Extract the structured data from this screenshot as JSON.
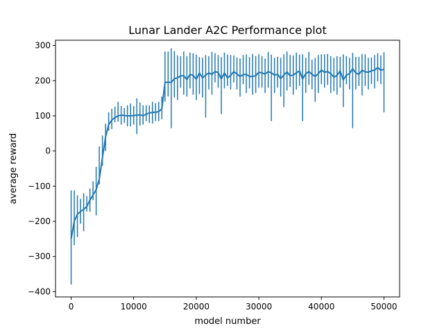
{
  "chart_data": {
    "type": "line",
    "title": "Lunar Lander A2C Performance plot",
    "xlabel": "model number",
    "ylabel": "average reward",
    "xlim": [
      -2500,
      52500
    ],
    "ylim": [
      -415,
      315
    ],
    "x_ticks": [
      0,
      10000,
      20000,
      30000,
      40000,
      50000
    ],
    "x_tick_labels": [
      "0",
      "10000",
      "20000",
      "30000",
      "40000",
      "50000"
    ],
    "y_ticks": [
      -400,
      -300,
      -200,
      -100,
      0,
      100,
      200,
      300
    ],
    "y_tick_labels": [
      "−400",
      "−300",
      "−200",
      "−100",
      "0",
      "100",
      "200",
      "300"
    ],
    "grid": false,
    "legend": "none",
    "series": [
      {
        "color": "#1f77b4",
        "error_bars": true,
        "x": [
          0,
          500,
          1000,
          1500,
          2000,
          2500,
          3000,
          3500,
          4000,
          4500,
          5000,
          5500,
          6000,
          6500,
          7000,
          7500,
          8000,
          8500,
          9000,
          9500,
          10000,
          10500,
          11000,
          11500,
          12000,
          12500,
          13000,
          13500,
          14000,
          14500,
          15000,
          15500,
          16000,
          16500,
          17000,
          17500,
          18000,
          18500,
          19000,
          19500,
          20000,
          20500,
          21000,
          21500,
          22000,
          22500,
          23000,
          23500,
          24000,
          24500,
          25000,
          25500,
          26000,
          26500,
          27000,
          27500,
          28000,
          28500,
          29000,
          29500,
          30000,
          30500,
          31000,
          31500,
          32000,
          32500,
          33000,
          33500,
          34000,
          34500,
          35000,
          35500,
          36000,
          36500,
          37000,
          37500,
          38000,
          38500,
          39000,
          39500,
          40000,
          40500,
          41000,
          41500,
          42000,
          42500,
          43000,
          43500,
          44000,
          44500,
          45000,
          45500,
          46000,
          46500,
          47000,
          47500,
          48000,
          48500,
          49000,
          49500,
          50000
        ],
        "y": [
          -250,
          -200,
          -180,
          -172,
          -166,
          -158,
          -140,
          -125,
          -110,
          -80,
          -20,
          40,
          75,
          88,
          95,
          100,
          102,
          101,
          100,
          100,
          101,
          102,
          103,
          100,
          105,
          108,
          110,
          110,
          112,
          120,
          195,
          196,
          195,
          206,
          208,
          214,
          214,
          203,
          218,
          215,
          204,
          222,
          208,
          216,
          222,
          218,
          226,
          223,
          205,
          222,
          208,
          215,
          226,
          219,
          212,
          217,
          218,
          212,
          212,
          214,
          224,
          222,
          219,
          226,
          222,
          216,
          218,
          206,
          216,
          225,
          214,
          216,
          222,
          228,
          205,
          220,
          226,
          218,
          212,
          220,
          230,
          224,
          226,
          220,
          210,
          215,
          228,
          202,
          216,
          220,
          234,
          222,
          218,
          230,
          225,
          224,
          228,
          230,
          237,
          230,
          232
        ],
        "lower": [
          -380,
          -268,
          -245,
          -207,
          -228,
          -172,
          -173,
          -140,
          -183,
          -95,
          -42,
          0,
          58,
          62,
          82,
          83,
          75,
          80,
          70,
          70,
          75,
          48,
          72,
          75,
          85,
          80,
          78,
          85,
          85,
          90,
          140,
          155,
          65,
          152,
          145,
          180,
          160,
          155,
          178,
          160,
          145,
          162,
          152,
          95,
          175,
          160,
          195,
          180,
          105,
          178,
          185,
          175,
          195,
          175,
          155,
          190,
          165,
          178,
          160,
          165,
          180,
          180,
          165,
          180,
          85,
          165,
          180,
          155,
          125,
          172,
          182,
          160,
          175,
          185,
          85,
          165,
          188,
          175,
          140,
          165,
          190,
          180,
          188,
          165,
          170,
          160,
          180,
          125,
          190,
          175,
          65,
          175,
          185,
          158,
          185,
          175,
          190,
          178,
          198,
          190,
          110
        ],
        "upper": [
          -112,
          -112,
          -126,
          -136,
          -120,
          -128,
          -107,
          -86,
          -45,
          13,
          44,
          78,
          110,
          120,
          126,
          140,
          128,
          122,
          130,
          135,
          128,
          150,
          138,
          130,
          130,
          130,
          140,
          136,
          140,
          155,
          283,
          283,
          292,
          284,
          272,
          270,
          283,
          270,
          280,
          278,
          274,
          267,
          265,
          273,
          270,
          282,
          278,
          273,
          267,
          280,
          274,
          273,
          272,
          266,
          263,
          273,
          275,
          267,
          276,
          270,
          275,
          270,
          263,
          282,
          274,
          265,
          268,
          265,
          275,
          283,
          273,
          272,
          280,
          274,
          275,
          265,
          282,
          260,
          265,
          273,
          275,
          275,
          276,
          270,
          265,
          270,
          268,
          275,
          270,
          265,
          279,
          268,
          268,
          276,
          275,
          265,
          266,
          273,
          278,
          272,
          281
        ]
      }
    ]
  }
}
